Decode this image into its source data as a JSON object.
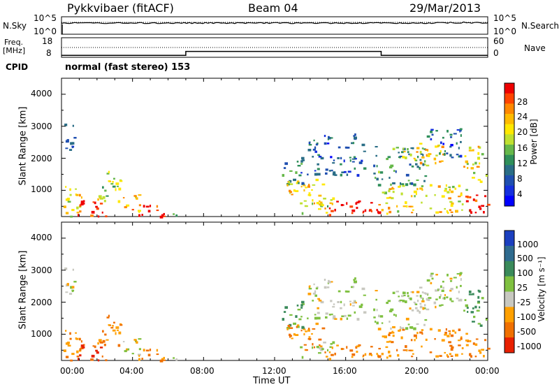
{
  "header": {
    "station": "Pykkvibaer (fitACF)",
    "beam": "Beam 04",
    "date": "29/Mar/2013"
  },
  "noise_panel": {
    "left_label": "N.Sky",
    "right_label": "N.Search",
    "ytick_top": "10^5",
    "ytick_bottom": "10^0",
    "rtick_top": "10^5",
    "rtick_bottom": "10^0"
  },
  "freq_panel": {
    "left_label_top": "Freq.",
    "left_label_unit": "[MHz]",
    "right_label": "Nave",
    "ytick_top": "18",
    "ytick_bottom": "8",
    "rtick_top": "60",
    "rtick_bottom": "0"
  },
  "cpid": {
    "label": "CPID",
    "text": "normal (fast stereo) 153"
  },
  "xaxis": {
    "label": "Time UT",
    "ticks": [
      "00:00",
      "04:00",
      "08:00",
      "12:00",
      "16:00",
      "20:00",
      "00:00"
    ]
  },
  "power_panel": {
    "ylabel": "Slant Range [km]",
    "yticks": [
      "4000",
      "3000",
      "2000",
      "1000"
    ],
    "cbar_label": "Power [dB]",
    "cbar_ticks": [
      "28",
      "24",
      "20",
      "16",
      "12",
      "8",
      "4"
    ],
    "cbar_colors": [
      "#ee0000",
      "#ff4400",
      "#ff8800",
      "#ffbb00",
      "#ffe800",
      "#bfe030",
      "#66b84a",
      "#2f8f5a",
      "#2a6d86",
      "#1f4fb0",
      "#1530dd",
      "#0000ff"
    ]
  },
  "velocity_panel": {
    "ylabel": "Slant Range [km]",
    "yticks": [
      "4000",
      "3000",
      "2000",
      "1000"
    ],
    "cbar_label": "Velocity [m s⁻¹]",
    "cbar_ticks": [
      "1000",
      "500",
      "100",
      "25",
      "-25",
      "-100",
      "-500",
      "-1000"
    ],
    "cbar_colors": [
      "#1b3fbf",
      "#2f6b8f",
      "#3a8a5a",
      "#7fc040",
      "#c8c8c0",
      "#ffa000",
      "#f07000",
      "#e82000"
    ]
  },
  "chart_data": {
    "type": "heatmap",
    "x_units": "hours UT",
    "xlim": [
      0,
      24
    ],
    "ylim_km": [
      180,
      4500
    ],
    "freq_steps": [
      {
        "start_h": 0,
        "end_h": 7.0,
        "freq_mhz": 9.0
      },
      {
        "start_h": 7.0,
        "end_h": 18.0,
        "freq_mhz": 11.0
      },
      {
        "start_h": 18.0,
        "end_h": 24.0,
        "freq_mhz": 9.0
      }
    ],
    "scatter_regions": [
      {
        "t0": 0.05,
        "t1": 0.7,
        "r0": 2200,
        "r1": 3200,
        "power_db": 6,
        "velocity": 25
      },
      {
        "t0": 0.1,
        "t1": 1.2,
        "r0": 200,
        "r1": 1200,
        "power_db": 18,
        "velocity": -100
      },
      {
        "t0": 0.5,
        "t1": 2.5,
        "r0": 200,
        "r1": 700,
        "power_db": 28,
        "velocity": -500
      },
      {
        "t0": 2.0,
        "t1": 3.3,
        "r0": 600,
        "r1": 1700,
        "power_db": 16,
        "velocity": -100
      },
      {
        "t0": 3.3,
        "t1": 4.4,
        "r0": 250,
        "r1": 900,
        "power_db": 20,
        "velocity": 25
      },
      {
        "t0": 4.2,
        "t1": 6.0,
        "r0": 200,
        "r1": 600,
        "power_db": 28,
        "velocity": -100
      },
      {
        "t0": 6.0,
        "t1": 6.6,
        "r0": 200,
        "r1": 400,
        "power_db": 8,
        "velocity": 25
      },
      {
        "t0": 12.4,
        "t1": 13.6,
        "r0": 1200,
        "r1": 2200,
        "power_db": 8,
        "velocity": 100
      },
      {
        "t0": 12.6,
        "t1": 14.8,
        "r0": 500,
        "r1": 1400,
        "power_db": 20,
        "velocity": -100
      },
      {
        "t0": 13.3,
        "t1": 15.3,
        "r0": 300,
        "r1": 800,
        "power_db": 16,
        "velocity": 25
      },
      {
        "t0": 14.8,
        "t1": 18.0,
        "r0": 200,
        "r1": 700,
        "power_db": 28,
        "velocity": -100
      },
      {
        "t0": 13.8,
        "t1": 17.0,
        "r0": 1500,
        "r1": 2800,
        "power_db": 6,
        "velocity": 25
      },
      {
        "t0": 17.5,
        "t1": 20.5,
        "r0": 1200,
        "r1": 2400,
        "power_db": 10,
        "velocity": 25
      },
      {
        "t0": 18.0,
        "t1": 23.0,
        "r0": 300,
        "r1": 1200,
        "power_db": 18,
        "velocity": -100
      },
      {
        "t0": 19.0,
        "t1": 21.5,
        "r0": 1800,
        "r1": 2500,
        "power_db": 18,
        "velocity": 25
      },
      {
        "t0": 20.5,
        "t1": 22.5,
        "r0": 2000,
        "r1": 3000,
        "power_db": 6,
        "velocity": 25
      },
      {
        "t0": 22.6,
        "t1": 23.9,
        "r0": 1300,
        "r1": 2400,
        "power_db": 18,
        "velocity": 100
      },
      {
        "t0": 22.5,
        "t1": 24.0,
        "r0": 300,
        "r1": 900,
        "power_db": 28,
        "velocity": -100
      }
    ]
  }
}
